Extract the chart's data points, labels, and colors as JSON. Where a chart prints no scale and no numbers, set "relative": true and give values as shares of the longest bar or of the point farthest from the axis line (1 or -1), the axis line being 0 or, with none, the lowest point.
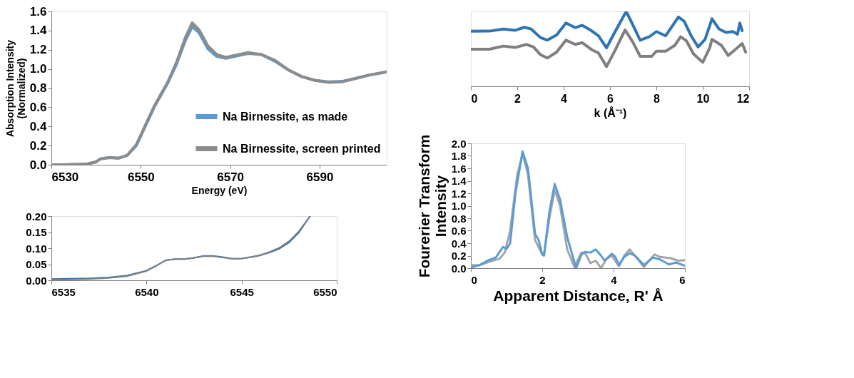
{
  "chart_data": [
    {
      "type": "line",
      "xlabel": "Energy (eV)",
      "ylabel": "Absorption Intensity\n(Normalized)",
      "xlim": [
        6530,
        6605
      ],
      "xticks": [
        6530,
        6550,
        6570,
        6590
      ],
      "ylim": [
        0,
        1.6
      ],
      "yticks": [
        {
          "value": 0,
          "label": "0.0"
        },
        0.2,
        0.4,
        0.6,
        0.8,
        {
          "value": 1,
          "label": "1.0"
        },
        1.2,
        1.4,
        1.6
      ],
      "grid": false,
      "legend": "bottom right",
      "marker": "none",
      "line_style": "solid",
      "series": [
        {
          "name": "Na Birnessite, as made",
          "color": "#5b9bd5",
          "x": [
            6530,
            6534,
            6538,
            6540,
            6541,
            6543,
            6545,
            6547,
            6549,
            6551,
            6553,
            6556,
            6558,
            6560,
            6561.5,
            6563,
            6565,
            6567,
            6569,
            6571,
            6574,
            6577,
            6580,
            6583,
            6586,
            6589,
            6592,
            6595,
            6598,
            6601,
            6605
          ],
          "values": [
            0.0,
            0.002,
            0.008,
            0.03,
            0.062,
            0.076,
            0.068,
            0.1,
            0.2,
            0.4,
            0.6,
            0.85,
            1.05,
            1.3,
            1.44,
            1.38,
            1.21,
            1.13,
            1.11,
            1.13,
            1.16,
            1.15,
            1.08,
            0.99,
            0.92,
            0.88,
            0.865,
            0.87,
            0.9,
            0.935,
            0.97
          ]
        },
        {
          "name": "Na Birnessite, screen printed",
          "color": "#8c8c8c",
          "x": [
            6530,
            6534,
            6538,
            6540,
            6541,
            6543,
            6545,
            6547,
            6549,
            6551,
            6553,
            6556,
            6558,
            6560,
            6561.5,
            6563,
            6565,
            6567,
            6569,
            6571,
            6574,
            6577,
            6580,
            6583,
            6586,
            6589,
            6592,
            6595,
            6598,
            6601,
            6605
          ],
          "values": [
            0.0,
            0.001,
            0.007,
            0.03,
            0.062,
            0.075,
            0.068,
            0.1,
            0.21,
            0.41,
            0.61,
            0.86,
            1.07,
            1.33,
            1.48,
            1.41,
            1.24,
            1.15,
            1.12,
            1.14,
            1.17,
            1.15,
            1.09,
            0.99,
            0.92,
            0.88,
            0.86,
            0.865,
            0.9,
            0.935,
            0.97
          ]
        }
      ]
    },
    {
      "type": "line",
      "xlim": [
        6535,
        6550
      ],
      "xticks": [
        6535,
        6540,
        6545,
        6550
      ],
      "ylim": [
        0,
        0.2
      ],
      "yticks": [
        {
          "value": 0,
          "label": "0.00"
        },
        {
          "value": 0.05,
          "label": "0.05"
        },
        {
          "value": 0.1,
          "label": "0.10"
        },
        {
          "value": 0.15,
          "label": "0.15"
        },
        {
          "value": 0.2,
          "label": "0.20"
        }
      ],
      "grid": false,
      "marker": "none",
      "line_style": "solid",
      "series": [
        {
          "color": "#2e75b6",
          "x": [
            6535,
            6537,
            6538,
            6539,
            6540,
            6540.5,
            6541,
            6541.5,
            6542,
            6542.5,
            6543,
            6543.5,
            6544,
            6544.5,
            6545,
            6545.5,
            6546,
            6546.5,
            6547,
            6547.5,
            6548,
            6548.6
          ],
          "values": [
            0.004,
            0.006,
            0.009,
            0.015,
            0.03,
            0.045,
            0.062,
            0.066,
            0.066,
            0.07,
            0.076,
            0.076,
            0.072,
            0.067,
            0.068,
            0.072,
            0.078,
            0.087,
            0.099,
            0.118,
            0.148,
            0.2
          ]
        },
        {
          "color": "#808080",
          "x": [
            6535,
            6537,
            6538,
            6539,
            6540,
            6540.5,
            6541,
            6541.5,
            6542,
            6542.5,
            6543,
            6543.5,
            6544,
            6544.5,
            6545,
            6545.5,
            6546,
            6546.5,
            6547,
            6547.5,
            6548,
            6548.6
          ],
          "values": [
            0.001,
            0.004,
            0.007,
            0.013,
            0.029,
            0.045,
            0.062,
            0.066,
            0.066,
            0.07,
            0.075,
            0.075,
            0.071,
            0.067,
            0.068,
            0.073,
            0.079,
            0.089,
            0.102,
            0.122,
            0.152,
            0.2
          ]
        }
      ]
    },
    {
      "type": "line",
      "relative": true,
      "xlabel": "k (Å⁻¹)",
      "tick_labels": "x",
      "xlim": [
        0,
        12
      ],
      "xticks": [
        0,
        2,
        4,
        6,
        8,
        10,
        12
      ],
      "grid": false,
      "marker": "none",
      "line_style": "solid",
      "series": [
        {
          "color": "#2e75b6",
          "x": [
            0,
            0.8,
            1.4,
            1.9,
            2.3,
            2.6,
            3.0,
            3.3,
            3.7,
            4.1,
            4.5,
            4.8,
            5.2,
            5.5,
            5.85,
            6.2,
            6.7,
            7.0,
            7.3,
            7.7,
            8.0,
            8.4,
            8.7,
            8.95,
            9.2,
            9.5,
            9.8,
            10.1,
            10.4,
            10.7,
            11.0,
            11.3,
            11.5,
            11.6,
            11.7
          ],
          "values": [
            0.735,
            0.737,
            0.765,
            0.747,
            0.788,
            0.765,
            0.651,
            0.616,
            0.685,
            0.845,
            0.783,
            0.815,
            0.742,
            0.674,
            0.514,
            0.719,
            1,
            0.81,
            0.616,
            0.662,
            0.731,
            0.674,
            0.81,
            0.925,
            0.868,
            0.674,
            0.525,
            0.628,
            0.902,
            0.765,
            0.719,
            0.731,
            0.696,
            0.845,
            0.742
          ]
        },
        {
          "color": "#7f7f7f",
          "x": [
            0,
            0.8,
            1.4,
            1.9,
            2.4,
            2.7,
            3.0,
            3.3,
            3.7,
            4.1,
            4.5,
            4.8,
            5.2,
            5.5,
            5.85,
            6.2,
            6.65,
            7.0,
            7.3,
            7.8,
            8.0,
            8.4,
            8.8,
            9.05,
            9.3,
            9.6,
            10.0,
            10.3,
            10.4,
            10.8,
            11.1,
            11.4,
            11.7,
            11.85
          ],
          "values": [
            0.495,
            0.495,
            0.537,
            0.518,
            0.559,
            0.525,
            0.422,
            0.377,
            0.457,
            0.616,
            0.559,
            0.582,
            0.491,
            0.445,
            0.263,
            0.468,
            0.753,
            0.582,
            0.4,
            0.4,
            0.468,
            0.468,
            0.548,
            0.662,
            0.605,
            0.434,
            0.32,
            0.514,
            0.628,
            0.548,
            0.411,
            0.491,
            0.571,
            0.457
          ]
        }
      ]
    },
    {
      "type": "line",
      "xlabel": "Apparent Distance, R'  Å",
      "ylabel": "Fourerier Transform\nIntensity",
      "xlim": [
        0,
        6
      ],
      "xticks": [
        0,
        2,
        4,
        6
      ],
      "ylim": [
        0,
        2
      ],
      "yticks": [
        {
          "value": 0,
          "label": "0.0"
        },
        {
          "value": 0.2,
          "label": "0.2"
        },
        {
          "value": 0.4,
          "label": "0.4"
        },
        {
          "value": 0.6,
          "label": "0.6"
        },
        {
          "value": 0.8,
          "label": "0.8"
        },
        {
          "value": 1,
          "label": "1.0"
        },
        {
          "value": 1.2,
          "label": "1.2"
        },
        {
          "value": 1.4,
          "label": "1.4"
        },
        {
          "value": 1.6,
          "label": "1.6"
        },
        {
          "value": 1.8,
          "label": "1.8"
        },
        {
          "value": 2,
          "label": "2.0"
        }
      ],
      "grid": false,
      "marker": "none",
      "line_style": "solid",
      "series": [
        {
          "color": "#a5a5a5",
          "x": [
            0,
            0.25,
            0.5,
            0.8,
            0.95,
            1.1,
            1.3,
            1.45,
            1.6,
            1.8,
            2.0,
            2.05,
            2.2,
            2.35,
            2.5,
            2.7,
            2.9,
            3.1,
            3.2,
            3.35,
            3.5,
            3.65,
            3.8,
            3.95,
            4.15,
            4.3,
            4.45,
            4.6,
            4.85,
            5.15,
            5.3,
            5.6,
            5.8,
            6.0
          ],
          "values": [
            0.05,
            0.05,
            0.1,
            0.15,
            0.25,
            0.6,
            1.5,
            1.83,
            1.5,
            0.45,
            0.22,
            0.22,
            0.8,
            1.25,
            1.0,
            0.3,
            0.02,
            0.25,
            0.25,
            0.08,
            0.12,
            0.0,
            0.15,
            0.2,
            0.03,
            0.2,
            0.3,
            0.2,
            0.02,
            0.22,
            0.18,
            0.16,
            0.12,
            0.13
          ]
        },
        {
          "color": "#5b9bd5",
          "x": [
            0,
            0.25,
            0.5,
            0.7,
            0.9,
            1.0,
            1.1,
            1.25,
            1.45,
            1.6,
            1.8,
            1.9,
            2.0,
            2.05,
            2.2,
            2.35,
            2.5,
            2.7,
            2.95,
            3.1,
            3.2,
            3.35,
            3.5,
            3.65,
            3.75,
            3.95,
            4.05,
            4.15,
            4.3,
            4.45,
            4.6,
            4.85,
            5.1,
            5.3,
            5.55,
            5.75,
            6.0
          ],
          "values": [
            0.01,
            0.05,
            0.13,
            0.17,
            0.34,
            0.31,
            0.4,
            1.2,
            1.87,
            1.6,
            0.55,
            0.45,
            0.22,
            0.2,
            0.9,
            1.35,
            1.1,
            0.5,
            0.0,
            0.22,
            0.26,
            0.25,
            0.3,
            0.2,
            0.12,
            0.23,
            0.18,
            0.05,
            0.18,
            0.24,
            0.2,
            0.05,
            0.17,
            0.14,
            0.06,
            0.09,
            0.04
          ]
        }
      ]
    }
  ]
}
